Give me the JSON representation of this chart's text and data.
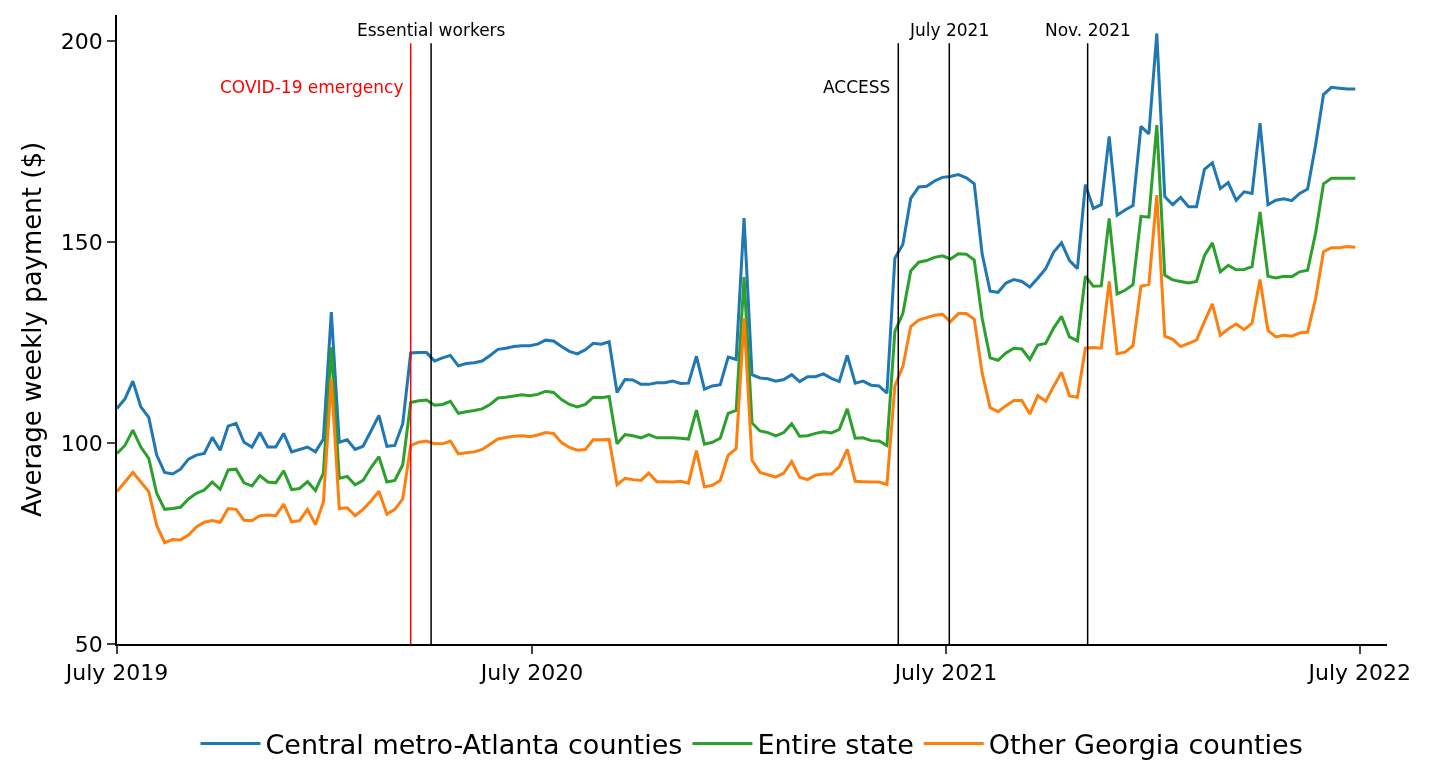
{
  "chart_data": {
    "type": "line",
    "ylabel": "Average weekly payment ($)",
    "x": [
      "2019-07-01",
      "2019-07-08",
      "2019-07-15",
      "2019-07-22",
      "2019-07-29",
      "2019-08-05",
      "2019-08-12",
      "2019-08-19",
      "2019-08-26",
      "2019-09-02",
      "2019-09-09",
      "2019-09-16",
      "2019-09-23",
      "2019-09-30",
      "2019-10-07",
      "2019-10-14",
      "2019-10-21",
      "2019-10-28",
      "2019-11-04",
      "2019-11-11",
      "2019-11-18",
      "2019-11-25",
      "2019-12-02",
      "2019-12-09",
      "2019-12-16",
      "2019-12-23",
      "2019-12-30",
      "2020-01-06",
      "2020-01-13",
      "2020-01-20",
      "2020-01-27",
      "2020-02-03",
      "2020-02-10",
      "2020-02-17",
      "2020-02-24",
      "2020-03-02",
      "2020-03-09",
      "2020-03-16",
      "2020-03-23",
      "2020-03-30",
      "2020-04-06",
      "2020-04-13",
      "2020-04-20",
      "2020-04-27",
      "2020-05-04",
      "2020-05-11",
      "2020-05-18",
      "2020-05-25",
      "2020-06-01",
      "2020-06-08",
      "2020-06-15",
      "2020-06-22",
      "2020-06-29",
      "2020-07-06",
      "2020-07-13",
      "2020-07-20",
      "2020-07-27",
      "2020-08-03",
      "2020-08-10",
      "2020-08-17",
      "2020-08-24",
      "2020-08-31",
      "2020-09-07",
      "2020-09-14",
      "2020-09-21",
      "2020-09-28",
      "2020-10-05",
      "2020-10-12",
      "2020-10-19",
      "2020-10-26",
      "2020-11-02",
      "2020-11-09",
      "2020-11-16",
      "2020-11-23",
      "2020-11-30",
      "2020-12-07",
      "2020-12-14",
      "2020-12-21",
      "2020-12-28",
      "2021-01-04",
      "2021-01-11",
      "2021-01-18",
      "2021-01-25",
      "2021-02-01",
      "2021-02-08",
      "2021-02-15",
      "2021-02-22",
      "2021-03-01",
      "2021-03-08",
      "2021-03-15",
      "2021-03-22",
      "2021-03-29",
      "2021-04-05",
      "2021-04-12",
      "2021-04-19",
      "2021-04-26",
      "2021-05-03",
      "2021-05-10",
      "2021-05-17",
      "2021-05-24",
      "2021-05-31",
      "2021-06-07",
      "2021-06-14",
      "2021-06-21",
      "2021-06-28",
      "2021-07-05",
      "2021-07-12",
      "2021-07-19",
      "2021-07-26",
      "2021-08-02",
      "2021-08-09",
      "2021-08-16",
      "2021-08-23",
      "2021-08-30",
      "2021-09-06",
      "2021-09-13",
      "2021-09-20",
      "2021-09-27",
      "2021-10-04",
      "2021-10-11",
      "2021-10-18",
      "2021-10-25",
      "2021-11-01",
      "2021-11-08",
      "2021-11-15",
      "2021-11-22",
      "2021-11-29",
      "2021-12-06",
      "2021-12-13",
      "2021-12-20",
      "2021-12-27",
      "2022-01-03",
      "2022-01-10",
      "2022-01-17",
      "2022-01-24",
      "2022-01-31",
      "2022-02-07",
      "2022-02-14",
      "2022-02-21",
      "2022-02-28",
      "2022-03-07",
      "2022-03-14",
      "2022-03-21",
      "2022-03-28",
      "2022-04-04",
      "2022-04-11",
      "2022-04-18",
      "2022-04-25",
      "2022-05-02",
      "2022-05-09",
      "2022-05-16",
      "2022-05-23",
      "2022-05-30",
      "2022-06-06",
      "2022-06-13",
      "2022-06-20",
      "2022-06-27"
    ],
    "series": [
      {
        "name": "Central metro-Atlanta counties",
        "color": "#1f77b4",
        "values": [
          108.6,
          111.0,
          115.4,
          109.0,
          106.4,
          97.0,
          92.7,
          92.3,
          93.5,
          96.0,
          97.0,
          97.4,
          101.4,
          98.2,
          104.2,
          104.9,
          100.2,
          99.0,
          102.6,
          99.0,
          99.0,
          102.4,
          97.8,
          98.4,
          99.0,
          97.8,
          101.0,
          132.6,
          100.2,
          100.8,
          98.4,
          99.2,
          103.0,
          106.9,
          99.2,
          99.4,
          104.8,
          122.4,
          122.5,
          122.5,
          120.4,
          121.2,
          121.8,
          119.2,
          119.8,
          120.0,
          120.4,
          121.8,
          123.3,
          123.6,
          124.0,
          124.2,
          124.2,
          124.6,
          125.6,
          125.4,
          124.0,
          122.8,
          122.2,
          123.2,
          124.8,
          124.6,
          125.2,
          112.6,
          115.8,
          115.7,
          114.6,
          114.6,
          115.0,
          115.0,
          115.4,
          114.8,
          114.9,
          121.6,
          113.4,
          114.2,
          114.5,
          121.4,
          120.8,
          156.0,
          117.0,
          116.2,
          116.0,
          115.4,
          115.8,
          117.0,
          115.3,
          116.5,
          116.5,
          117.2,
          116.1,
          115.3,
          121.8,
          114.9,
          115.4,
          114.4,
          114.2,
          112.4,
          146.0,
          149.4,
          160.9,
          163.7,
          163.9,
          165.2,
          166.1,
          166.3,
          166.8,
          166.0,
          164.5,
          147.0,
          137.8,
          137.5,
          139.8,
          140.7,
          140.2,
          138.8,
          141.0,
          143.4,
          147.5,
          149.8,
          145.4,
          143.4,
          164.3,
          158.4,
          159.3,
          176.3,
          156.7,
          158.0,
          159.1,
          178.8,
          176.9,
          201.9,
          161.3,
          159.3,
          161.1,
          158.8,
          158.8,
          168.1,
          169.7,
          163.3,
          164.8,
          160.4,
          162.5,
          162.1,
          179.6,
          159.3,
          160.4,
          160.8,
          160.3,
          162.1,
          163.2,
          174.1,
          186.7,
          188.5,
          188.3,
          188.1,
          188.1
        ]
      },
      {
        "name": "Entire state",
        "color": "#2ca02c",
        "values": [
          97.4,
          99.4,
          103.2,
          99.0,
          96.2,
          87.5,
          83.5,
          83.7,
          84.0,
          86.1,
          87.5,
          88.3,
          90.3,
          88.5,
          93.3,
          93.5,
          90.1,
          89.3,
          91.9,
          90.3,
          90.1,
          93.1,
          88.4,
          88.7,
          90.4,
          88.2,
          92.5,
          123.8,
          91.2,
          91.7,
          89.6,
          90.7,
          93.9,
          96.6,
          90.3,
          90.7,
          94.6,
          110.1,
          110.5,
          110.7,
          109.4,
          109.6,
          110.4,
          107.4,
          107.8,
          108.1,
          108.5,
          109.6,
          111.2,
          111.4,
          111.7,
          112.0,
          111.8,
          112.1,
          112.9,
          112.6,
          110.8,
          109.6,
          109.0,
          109.6,
          111.4,
          111.3,
          111.6,
          99.8,
          102.1,
          101.8,
          101.3,
          102.1,
          101.3,
          101.3,
          101.3,
          101.2,
          101.0,
          108.2,
          99.7,
          100.2,
          101.2,
          107.4,
          108.1,
          141.3,
          105.0,
          103.0,
          102.6,
          101.8,
          102.6,
          104.8,
          101.7,
          101.8,
          102.4,
          102.8,
          102.5,
          103.4,
          108.5,
          101.2,
          101.3,
          100.6,
          100.5,
          99.4,
          127.8,
          132.2,
          142.8,
          145.0,
          145.4,
          146.2,
          146.6,
          145.8,
          147.1,
          147.0,
          145.5,
          131.0,
          121.2,
          120.6,
          122.4,
          123.6,
          123.4,
          120.8,
          124.4,
          124.8,
          128.6,
          131.5,
          126.4,
          125.4,
          141.5,
          139.0,
          139.1,
          155.9,
          137.1,
          138.0,
          139.4,
          156.4,
          156.2,
          179.1,
          141.8,
          140.6,
          140.2,
          139.8,
          140.2,
          146.6,
          149.8,
          142.6,
          144.2,
          143.1,
          143.2,
          143.9,
          157.5,
          141.5,
          141.1,
          141.5,
          141.4,
          142.6,
          143.0,
          152.2,
          164.5,
          165.9,
          165.9,
          165.9,
          165.9
        ]
      },
      {
        "name": "Other Georgia counties",
        "color": "#ff7f0e",
        "values": [
          87.9,
          90.3,
          92.7,
          90.3,
          87.9,
          79.5,
          75.2,
          76.0,
          75.9,
          77.1,
          79.1,
          80.3,
          80.7,
          80.3,
          83.7,
          83.5,
          80.8,
          80.7,
          81.9,
          82.1,
          81.9,
          84.8,
          80.4,
          80.7,
          83.5,
          79.7,
          85.3,
          116.0,
          83.7,
          83.9,
          81.9,
          83.5,
          85.6,
          88.0,
          82.3,
          83.5,
          86.1,
          99.4,
          100.2,
          100.5,
          99.8,
          99.8,
          100.5,
          97.3,
          97.6,
          97.8,
          98.4,
          99.7,
          101.0,
          101.4,
          101.7,
          101.8,
          101.6,
          102.0,
          102.6,
          102.4,
          100.1,
          98.9,
          98.2,
          98.4,
          100.8,
          100.8,
          100.9,
          89.6,
          91.2,
          90.9,
          90.7,
          92.5,
          90.4,
          90.4,
          90.3,
          90.5,
          90.0,
          98.1,
          89.1,
          89.5,
          90.7,
          97.0,
          98.6,
          131.0,
          95.7,
          92.7,
          92.1,
          91.5,
          92.5,
          95.4,
          91.5,
          90.9,
          92.0,
          92.3,
          92.3,
          94.1,
          98.4,
          90.5,
          90.4,
          90.3,
          90.3,
          89.7,
          114.2,
          119.0,
          129.0,
          130.6,
          131.2,
          131.8,
          132.0,
          130.2,
          132.2,
          132.2,
          130.8,
          117.4,
          108.8,
          107.8,
          109.3,
          110.6,
          110.6,
          107.2,
          111.8,
          110.4,
          114.1,
          117.6,
          111.7,
          111.4,
          123.6,
          123.8,
          123.6,
          140.2,
          122.2,
          122.6,
          124.2,
          139.0,
          139.5,
          161.7,
          126.6,
          125.8,
          124.0,
          124.8,
          125.6,
          130.2,
          134.6,
          126.8,
          128.4,
          129.6,
          128.2,
          129.8,
          140.7,
          128.0,
          126.4,
          126.8,
          126.6,
          127.4,
          127.6,
          135.9,
          147.6,
          148.6,
          148.6,
          148.9,
          148.7
        ]
      }
    ],
    "xlim": [
      "2019-07-01",
      "2022-07-25"
    ],
    "xticks": [
      {
        "value": "2019-07-01",
        "label": "July 2019"
      },
      {
        "value": "2020-07-01",
        "label": "July 2020"
      },
      {
        "value": "2021-07-01",
        "label": "July 2021"
      },
      {
        "value": "2022-07-01",
        "label": "July 2022"
      }
    ],
    "ylim": [
      50,
      206.5
    ],
    "yticks": [
      50,
      100,
      150,
      200
    ],
    "ref_lines": [
      {
        "axis": "x",
        "value": "2020-03-16",
        "label": "COVID-19 emergency",
        "color": "#ff0000"
      },
      {
        "axis": "x",
        "value": "2020-04-03",
        "label": "Essential workers",
        "color": "#000000"
      },
      {
        "axis": "x",
        "value": "2021-05-20",
        "label": "ACCESS",
        "color": "#000000"
      },
      {
        "axis": "x",
        "value": "2021-07-04",
        "label": "July 2021",
        "color": "#000000"
      },
      {
        "axis": "x",
        "value": "2021-11-03",
        "label": "Nov. 2021",
        "color": "#000000"
      }
    ],
    "legend": "bottom",
    "marker": "none",
    "line_style": "solid"
  }
}
